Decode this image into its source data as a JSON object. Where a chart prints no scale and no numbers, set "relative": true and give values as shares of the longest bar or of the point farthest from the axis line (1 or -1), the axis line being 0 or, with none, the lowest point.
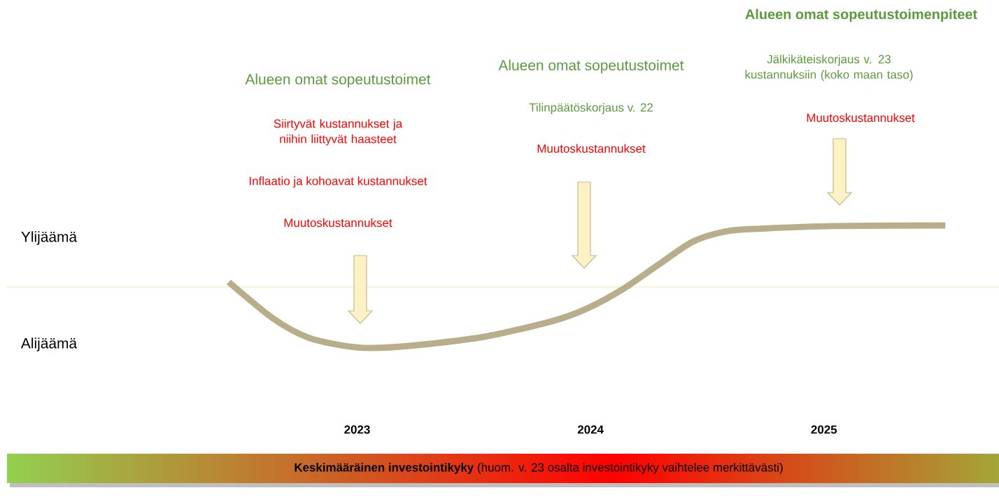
{
  "chart_data": {
    "type": "line",
    "relative": true,
    "x": [
      2022.45,
      2022.64,
      2022.79,
      2022.94,
      2023.06,
      2023.24,
      2023.54,
      2023.84,
      2023.99,
      2024.14,
      2024.29,
      2024.44,
      2024.59,
      2024.74,
      2025.04,
      2025.52
    ],
    "xlim": [
      2021.5,
      2025.75
    ],
    "xticks": [
      2023,
      2024,
      2025
    ],
    "series": [
      {
        "color": "#b9ae8c",
        "values": [
          0.08,
          -0.51,
          -0.82,
          -0.95,
          -0.99,
          -0.95,
          -0.81,
          -0.55,
          -0.34,
          -0.03,
          0.36,
          0.74,
          0.91,
          0.95,
          0.99,
          1.0
        ]
      }
    ],
    "ref_lines": [
      {
        "axis": "y",
        "value": 0,
        "color": "#f6efc4"
      }
    ],
    "annotations": [
      "Ylijäämä",
      "Alijäämä",
      "Alueen omat sopeutustoimet",
      "Siirtyvät kustannukset ja niihin liittyvät haasteet",
      "Inflaatio ja kohoavat kustannukset",
      "Muutoskustannukset",
      "Alueen omat sopeutustoimet",
      "Tilinpäätöskorjaus v. 22",
      "Muutoskustannukset",
      "Alueen omat sopeutustoimenpiteet",
      "Jälkikäteiskorjaus v. 23 kustannuksiin (koko maan taso)",
      "Muutoskustannukset",
      "**Keskimääräinen investointikyky** (huom. v. 23 osalta investointikyky vaihtelee merkittävästi)"
    ]
  }
}
